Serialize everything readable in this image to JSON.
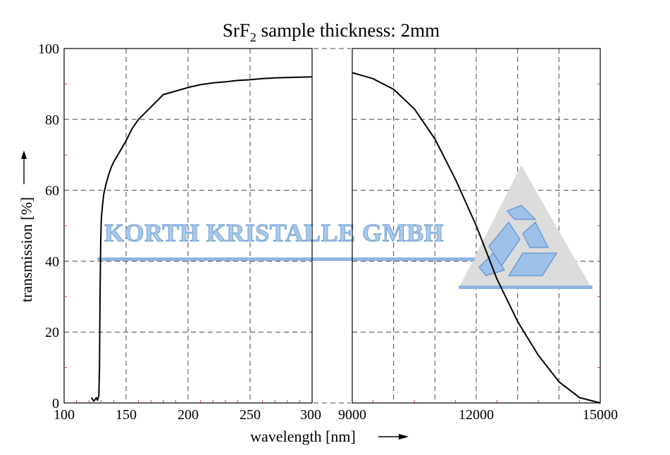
{
  "chart_data": {
    "type": "line",
    "title_main": "SrF",
    "title_sub": "2",
    "title_rest": " sample thickness: 2mm",
    "xlabel": "wavelength [nm]",
    "ylabel": "transmission [%]",
    "ylim": [
      0,
      100
    ],
    "y_ticks": [
      "0",
      "20",
      "40",
      "60",
      "80",
      "100"
    ],
    "grid": true,
    "panels": [
      {
        "name": "uv",
        "xlim": [
          100,
          300
        ],
        "x_ticks": [
          "100",
          "150",
          "200",
          "250",
          "300"
        ],
        "series": [
          {
            "x": [
              122,
              124,
              126,
              127,
              128,
              128.5,
              129,
              129.5,
              130,
              131,
              132,
              134,
              136,
              138,
              140,
              145,
              150,
              155,
              160,
              170,
              180,
              190,
              200,
              210,
              220,
              230,
              240,
              250,
              260,
              270,
              280,
              290,
              300
            ],
            "y": [
              1.5,
              0.5,
              1.5,
              0.8,
              2,
              10,
              30,
              45,
              52,
              56,
              59,
              62,
              64.5,
              66.5,
              68,
              71,
              74,
              77.5,
              80,
              83.5,
              87,
              88,
              89,
              89.8,
              90.3,
              90.6,
              91,
              91.2,
              91.5,
              91.7,
              91.8,
              91.9,
              92
            ]
          }
        ]
      },
      {
        "name": "ir",
        "xlim": [
          9000,
          15000
        ],
        "x_ticks": [
          "9000",
          "12000",
          "15000"
        ],
        "series": [
          {
            "x": [
              9000,
              9500,
              10000,
              10500,
              11000,
              11500,
              12000,
              12500,
              13000,
              13500,
              14000,
              14500,
              15000
            ],
            "y": [
              93.2,
              91.5,
              88.5,
              83,
              74.5,
              63,
              50,
              35,
              23,
              13.5,
              6,
              1.5,
              0
            ]
          }
        ]
      }
    ]
  },
  "watermark": {
    "text": "KORTH KRISTALLE GMBH",
    "text_color": "#a9c9ea",
    "line_color": "#8fb6e2",
    "triangle_color": "#dcdcdc",
    "logo_color": "#9ec1e9"
  }
}
